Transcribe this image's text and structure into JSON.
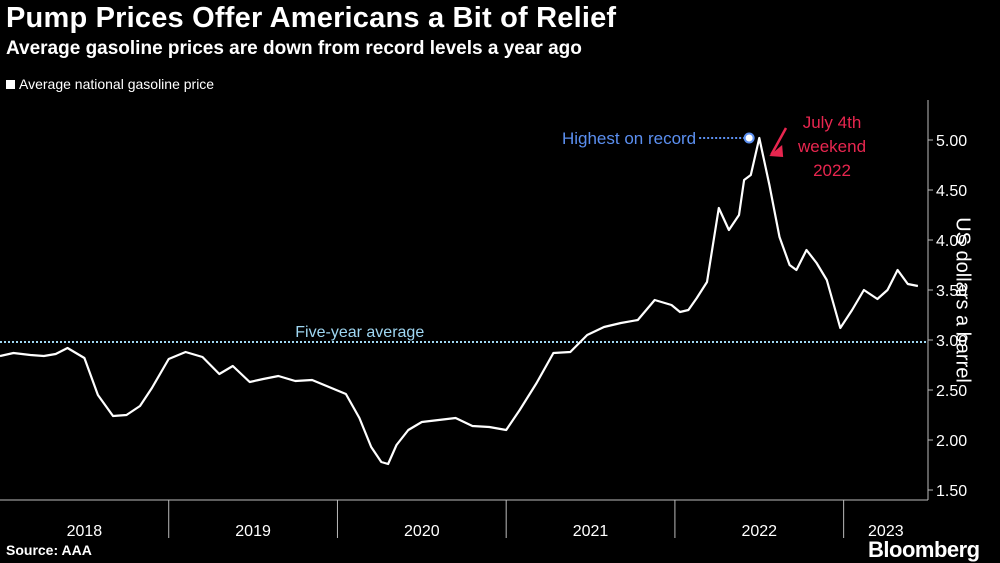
{
  "title": "Pump Prices Offer Americans a Bit of Relief",
  "subtitle": "Average gasoline prices are down from record levels a year ago",
  "legend_label": "Average national gasoline price",
  "source": "Source: AAA",
  "brand": "Bloomberg",
  "colors": {
    "background": "#000000",
    "series": "#ffffff",
    "average_line": "#9fd7f2",
    "record_annotation": "#5b8ff0",
    "july_annotation": "#e8264f"
  },
  "chart_data": {
    "type": "line",
    "title": "Pump Prices Offer Americans a Bit of Relief",
    "subtitle": "Average gasoline prices are down from record levels a year ago",
    "ylabel": "US dollars a barrel",
    "ylim": [
      1.4,
      5.4
    ],
    "yticks": [
      1.5,
      2.0,
      2.5,
      3.0,
      3.5,
      4.0,
      4.5,
      5.0
    ],
    "ytick_labels": [
      "1.50",
      "2.00",
      "2.50",
      "3.00",
      "3.50",
      "4.00",
      "4.50",
      "5.00"
    ],
    "xlim": [
      2018.0,
      2023.5
    ],
    "year_labels": [
      "2018",
      "2019",
      "2020",
      "2021",
      "2022",
      "2023"
    ],
    "series": [
      {
        "name": "Average national gasoline price",
        "x": [
          2018.0,
          2018.08,
          2018.18,
          2018.26,
          2018.33,
          2018.4,
          2018.5,
          2018.58,
          2018.67,
          2018.75,
          2018.83,
          2018.9,
          2019.0,
          2019.1,
          2019.2,
          2019.3,
          2019.38,
          2019.48,
          2019.56,
          2019.65,
          2019.75,
          2019.85,
          2019.95,
          2020.05,
          2020.13,
          2020.2,
          2020.26,
          2020.3,
          2020.35,
          2020.42,
          2020.5,
          2020.6,
          2020.7,
          2020.8,
          2020.9,
          2021.0,
          2021.08,
          2021.18,
          2021.28,
          2021.38,
          2021.48,
          2021.58,
          2021.68,
          2021.78,
          2021.88,
          2021.98,
          2022.03,
          2022.08,
          2022.13,
          2022.19,
          2022.26,
          2022.32,
          2022.38,
          2022.41,
          2022.45,
          2022.5,
          2022.56,
          2022.62,
          2022.68,
          2022.72,
          2022.78,
          2022.84,
          2022.9,
          2022.98,
          2023.05,
          2023.12,
          2023.2,
          2023.26,
          2023.32,
          2023.38,
          2023.44
        ],
        "values": [
          2.84,
          2.87,
          2.85,
          2.84,
          2.86,
          2.92,
          2.82,
          2.45,
          2.24,
          2.25,
          2.34,
          2.52,
          2.81,
          2.88,
          2.83,
          2.66,
          2.74,
          2.58,
          2.61,
          2.64,
          2.59,
          2.6,
          2.53,
          2.46,
          2.22,
          1.93,
          1.78,
          1.76,
          1.95,
          2.1,
          2.18,
          2.2,
          2.22,
          2.14,
          2.13,
          2.1,
          2.3,
          2.57,
          2.87,
          2.88,
          3.05,
          3.13,
          3.17,
          3.2,
          3.4,
          3.35,
          3.28,
          3.3,
          3.42,
          3.58,
          4.32,
          4.1,
          4.25,
          4.6,
          4.65,
          5.02,
          4.55,
          4.03,
          3.75,
          3.7,
          3.9,
          3.77,
          3.6,
          3.12,
          3.3,
          3.5,
          3.41,
          3.5,
          3.7,
          3.56,
          3.54
        ]
      }
    ],
    "five_year_average": 2.98,
    "annotations": {
      "five_year_label": "Five-year average",
      "record_label": "Highest on record",
      "record_point": {
        "x": 2022.44,
        "y": 5.02
      },
      "july_label_lines": [
        "July 4th",
        "weekend",
        "2022"
      ]
    }
  }
}
